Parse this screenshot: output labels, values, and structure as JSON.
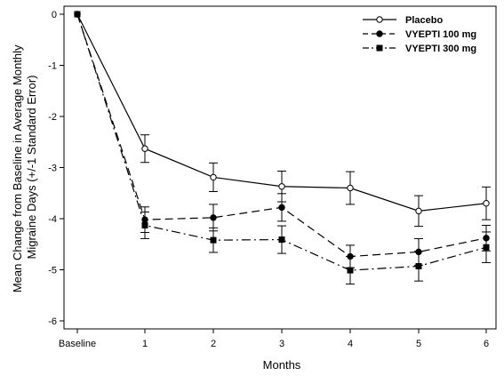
{
  "chart_data": {
    "type": "line",
    "title": "",
    "xlabel": "Months",
    "ylabel_lines": [
      "Mean Change from Baseline in Average Monthly",
      "Migraine Days (+/-1 Standard Error)"
    ],
    "categories": [
      "Baseline",
      "1",
      "2",
      "3",
      "4",
      "5",
      "6"
    ],
    "yticks": [
      0,
      -1,
      -2,
      -3,
      -4,
      -5,
      -6
    ],
    "ylim": [
      -6.2,
      0.1
    ],
    "grid": false,
    "legend_position": "top-right",
    "series": [
      {
        "name": "Placebo",
        "marker": "open-circle",
        "dash": "solid",
        "values": [
          0,
          -2.63,
          -3.19,
          -3.37,
          -3.4,
          -3.85,
          -3.7
        ],
        "errors": [
          0,
          0.27,
          0.28,
          0.3,
          0.32,
          0.3,
          0.32
        ]
      },
      {
        "name": "VYEPTI 100 mg",
        "marker": "filled-circle",
        "dash": "dashed",
        "values": [
          0,
          -4.02,
          -3.98,
          -3.78,
          -4.74,
          -4.65,
          -4.38
        ],
        "errors": [
          0,
          0.25,
          0.26,
          0.27,
          0.22,
          0.26,
          0.25
        ]
      },
      {
        "name": "VYEPTI 300 mg",
        "marker": "filled-square",
        "dash": "dashdot",
        "values": [
          0,
          -4.13,
          -4.42,
          -4.41,
          -5.01,
          -4.93,
          -4.56
        ],
        "errors": [
          0,
          0.26,
          0.24,
          0.27,
          0.27,
          0.29,
          0.3
        ]
      }
    ]
  }
}
